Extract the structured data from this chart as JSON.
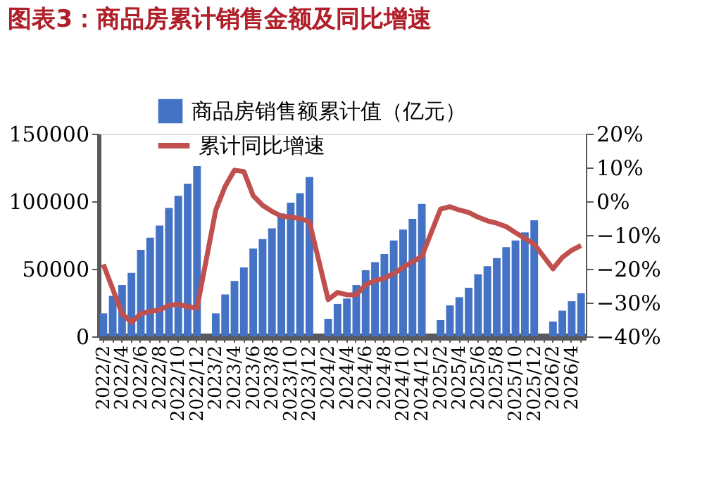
{
  "chart_data": {
    "type": "bar",
    "title": "图表3：商品房累计销售金额及同比增速",
    "categories": [
      "2022/2",
      null,
      "2022/4",
      null,
      "2022/6",
      null,
      "2022/8",
      null,
      "2022/10",
      null,
      "2022/12",
      null,
      "2023/2",
      null,
      "2023/4",
      null,
      "2023/6",
      null,
      "2023/8",
      null,
      "2023/10",
      null,
      "2023/12",
      null,
      "2024/2",
      null,
      "2024/4",
      null,
      "2024/6",
      null,
      "2024/8",
      null,
      "2024/10",
      null,
      "2024/12",
      null,
      "2025/2",
      null,
      "2025/4",
      null,
      "2025/6",
      null,
      "2025/8",
      null,
      "2025/10",
      null,
      "2025/12",
      null,
      "2026/2",
      null,
      "2026/4",
      null
    ],
    "series": [
      {
        "name": "商品房销售额累计值（亿元）",
        "color": "#4472c4",
        "values": [
          17000,
          30000,
          38000,
          47000,
          64000,
          73000,
          82000,
          95000,
          104000,
          113000,
          126000,
          null,
          17000,
          31000,
          41000,
          51000,
          65000,
          72000,
          80000,
          91000,
          99000,
          106000,
          118000,
          null,
          13000,
          24000,
          28000,
          38000,
          49000,
          55000,
          61000,
          71000,
          79000,
          87000,
          98000,
          null,
          12000,
          23000,
          29000,
          36000,
          46000,
          52000,
          58000,
          66000,
          71000,
          77000,
          86000,
          null,
          11000,
          19000,
          26000,
          32000
        ]
      },
      {
        "name": "累计同比增速",
        "type": "line",
        "axis": "y2",
        "color": "#c0504d",
        "values": [
          -18.7,
          -26,
          -33.3,
          -35.8,
          -33.3,
          -32.6,
          -32.2,
          -30.8,
          -30.5,
          -31.2,
          -31.6,
          null,
          -2.6,
          4.4,
          9.2,
          8.8,
          1.6,
          -1.2,
          -3,
          -4.4,
          -4.7,
          -5.1,
          -6.1,
          null,
          -29.1,
          -27,
          -27.7,
          -27.7,
          -24.7,
          -23.5,
          -22.8,
          -21.4,
          -19.6,
          -17.9,
          -16.3,
          null,
          -2.3,
          -1.6,
          -2.6,
          -3.3,
          -4.7,
          -5.8,
          -6.5,
          -7.5,
          -9.3,
          -11,
          -12.7,
          null,
          -20,
          -16.6,
          -14.5,
          -13.1
        ]
      }
    ],
    "ylim": [
      0,
      150000
    ],
    "yticks": [
      0,
      50000,
      100000,
      150000
    ],
    "y2lim": [
      -40,
      20
    ],
    "y2ticks": [
      {
        "value": -40,
        "label": "−40%"
      },
      {
        "value": -30,
        "label": "−30%"
      },
      {
        "value": -20,
        "label": "−20%"
      },
      {
        "value": -10,
        "label": "−10%"
      },
      {
        "value": 0,
        "label": "0%"
      },
      {
        "value": 10,
        "label": "10%"
      },
      {
        "value": 20,
        "label": "20%"
      }
    ],
    "grid": false,
    "legend": "top left",
    "marker": "none",
    "line_style": "solid"
  }
}
